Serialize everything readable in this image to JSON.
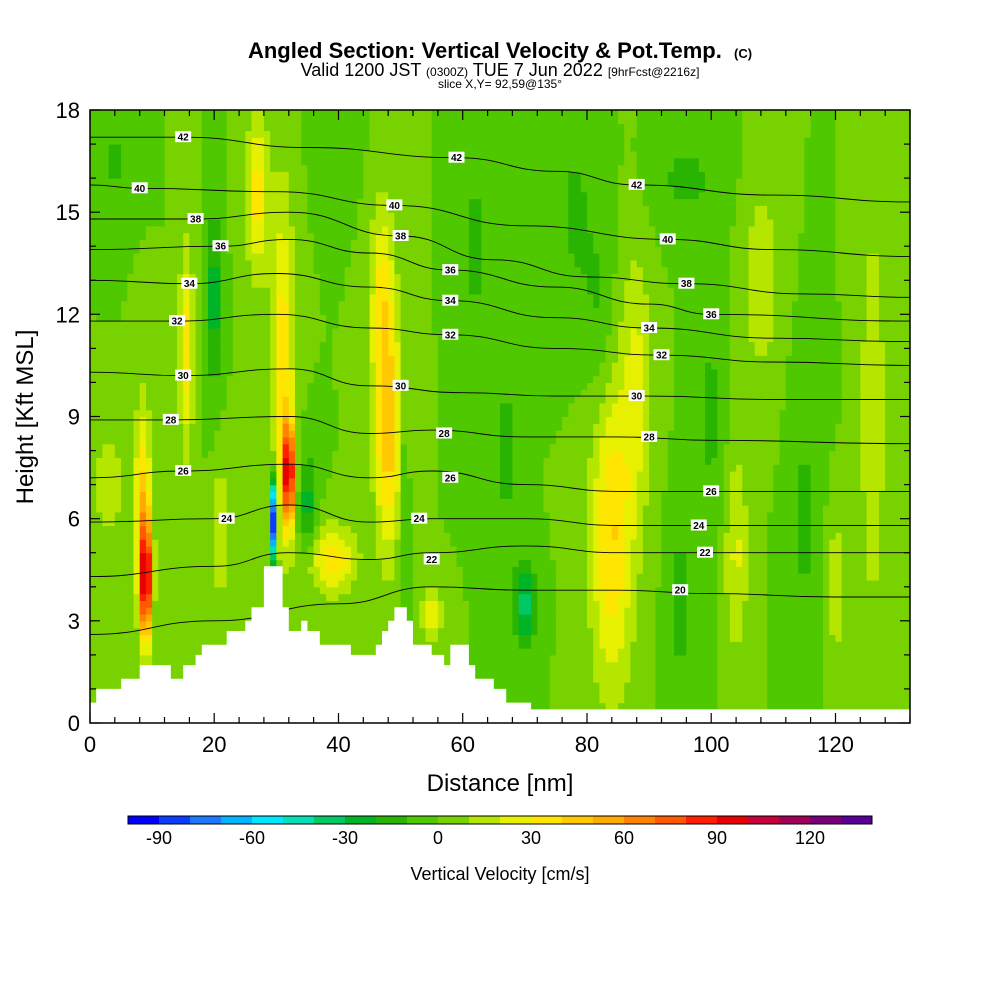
{
  "chart_data": {
    "type": "heatmap",
    "title": "Angled Section: Vertical Velocity & Pot.Temp.",
    "title_units": "(C)",
    "subtitle_prefix": "Valid 1200 JST",
    "subtitle_utc": "(0300Z)",
    "subtitle_date": "TUE 7 Jun 2022",
    "subtitle_fcst": "[9hrFcst@2216z]",
    "slice_label": "slice X,Y= 92,59@135°",
    "xlabel": "Distance [nm]",
    "ylabel": "Height [Kft MSL]",
    "xlim": [
      0,
      132
    ],
    "ylim": [
      0,
      18
    ],
    "x_ticks": [
      0,
      20,
      40,
      60,
      80,
      100,
      120
    ],
    "y_ticks": [
      0,
      3,
      6,
      9,
      12,
      15,
      18
    ],
    "colorbar": {
      "label": "Vertical Velocity [cm/s]",
      "min": -100,
      "max": 140,
      "step": 10,
      "tick_values": [
        -90,
        -60,
        -30,
        0,
        30,
        60,
        90,
        120
      ],
      "colors": [
        "#0000ff",
        "#0a3cff",
        "#1e78ff",
        "#00b4ff",
        "#00e6ff",
        "#00e0b4",
        "#00c864",
        "#00b428",
        "#28b400",
        "#50c800",
        "#78d200",
        "#b4e600",
        "#e6f000",
        "#ffe600",
        "#ffc800",
        "#ffaa00",
        "#ff8200",
        "#ff5a00",
        "#ff1e00",
        "#e60000",
        "#c8003c",
        "#a0005a",
        "#780078",
        "#5a0096"
      ]
    },
    "theta_isolines": [
      {
        "value": 20,
        "label": "20",
        "points": [
          [
            0,
            2.6
          ],
          [
            20,
            3.0
          ],
          [
            40,
            3.5
          ],
          [
            55,
            4.0
          ],
          [
            70,
            3.9
          ],
          [
            85,
            3.9
          ],
          [
            100,
            3.8
          ],
          [
            120,
            3.7
          ],
          [
            132,
            3.7
          ]
        ],
        "labels_at": [
          [
            95,
            3.9
          ]
        ]
      },
      {
        "value": 22,
        "label": "22",
        "points": [
          [
            0,
            4.3
          ],
          [
            20,
            4.6
          ],
          [
            32,
            5.0
          ],
          [
            45,
            4.8
          ],
          [
            55,
            5.0
          ],
          [
            70,
            5.2
          ],
          [
            85,
            5.0
          ],
          [
            100,
            5.0
          ],
          [
            132,
            5.0
          ]
        ],
        "labels_at": [
          [
            55,
            4.8
          ],
          [
            99,
            5.0
          ]
        ]
      },
      {
        "value": 24,
        "label": "24",
        "points": [
          [
            0,
            5.9
          ],
          [
            20,
            6.0
          ],
          [
            32,
            6.4
          ],
          [
            45,
            5.9
          ],
          [
            55,
            6.0
          ],
          [
            70,
            6.0
          ],
          [
            85,
            5.8
          ],
          [
            100,
            5.8
          ],
          [
            132,
            5.8
          ]
        ],
        "labels_at": [
          [
            22,
            6.0
          ],
          [
            53,
            6.0
          ],
          [
            98,
            5.8
          ]
        ]
      },
      {
        "value": 26,
        "label": "26",
        "points": [
          [
            0,
            7.2
          ],
          [
            15,
            7.4
          ],
          [
            32,
            7.6
          ],
          [
            45,
            7.2
          ],
          [
            55,
            7.4
          ],
          [
            70,
            7.0
          ],
          [
            85,
            6.8
          ],
          [
            100,
            6.8
          ],
          [
            132,
            6.8
          ]
        ],
        "labels_at": [
          [
            15,
            7.4
          ],
          [
            58,
            7.2
          ],
          [
            100,
            6.8
          ]
        ]
      },
      {
        "value": 28,
        "label": "28",
        "points": [
          [
            0,
            8.9
          ],
          [
            13,
            8.9
          ],
          [
            32,
            9.0
          ],
          [
            45,
            8.5
          ],
          [
            55,
            8.6
          ],
          [
            70,
            8.4
          ],
          [
            85,
            8.4
          ],
          [
            100,
            8.3
          ],
          [
            132,
            8.2
          ]
        ],
        "labels_at": [
          [
            13,
            8.9
          ],
          [
            57,
            8.5
          ],
          [
            90,
            8.4
          ]
        ]
      },
      {
        "value": 30,
        "label": "30",
        "points": [
          [
            0,
            10.3
          ],
          [
            15,
            10.2
          ],
          [
            32,
            10.4
          ],
          [
            45,
            9.9
          ],
          [
            60,
            9.7
          ],
          [
            75,
            9.6
          ],
          [
            90,
            9.6
          ],
          [
            110,
            9.5
          ],
          [
            132,
            9.5
          ]
        ],
        "labels_at": [
          [
            15,
            10.2
          ],
          [
            50,
            9.9
          ],
          [
            88,
            9.6
          ]
        ]
      },
      {
        "value": 32,
        "label": "32",
        "points": [
          [
            0,
            11.8
          ],
          [
            14,
            11.8
          ],
          [
            30,
            12.0
          ],
          [
            45,
            11.6
          ],
          [
            58,
            11.4
          ],
          [
            75,
            11.0
          ],
          [
            92,
            10.8
          ],
          [
            110,
            10.6
          ],
          [
            132,
            10.5
          ]
        ],
        "labels_at": [
          [
            14,
            11.8
          ],
          [
            58,
            11.4
          ],
          [
            92,
            10.8
          ]
        ]
      },
      {
        "value": 34,
        "label": "34",
        "points": [
          [
            0,
            13.0
          ],
          [
            16,
            12.9
          ],
          [
            30,
            13.2
          ],
          [
            45,
            12.8
          ],
          [
            58,
            12.4
          ],
          [
            75,
            11.9
          ],
          [
            90,
            11.6
          ],
          [
            110,
            11.3
          ],
          [
            132,
            11.2
          ]
        ],
        "labels_at": [
          [
            16,
            12.9
          ],
          [
            58,
            12.4
          ],
          [
            90,
            11.6
          ]
        ]
      },
      {
        "value": 36,
        "label": "36",
        "points": [
          [
            0,
            13.9
          ],
          [
            21,
            14.0
          ],
          [
            32,
            14.2
          ],
          [
            45,
            13.8
          ],
          [
            58,
            13.3
          ],
          [
            75,
            12.8
          ],
          [
            90,
            12.3
          ],
          [
            100,
            12.0
          ],
          [
            132,
            11.8
          ]
        ],
        "labels_at": [
          [
            21,
            14.0
          ],
          [
            58,
            13.3
          ],
          [
            100,
            12.0
          ]
        ]
      },
      {
        "value": 38,
        "label": "38",
        "points": [
          [
            0,
            14.8
          ],
          [
            17,
            14.8
          ],
          [
            32,
            15.0
          ],
          [
            50,
            14.3
          ],
          [
            65,
            13.6
          ],
          [
            80,
            13.1
          ],
          [
            96,
            12.9
          ],
          [
            115,
            12.6
          ],
          [
            132,
            12.5
          ]
        ],
        "labels_at": [
          [
            17,
            14.8
          ],
          [
            50,
            14.3
          ],
          [
            96,
            12.9
          ]
        ]
      },
      {
        "value": 40,
        "label": "40",
        "points": [
          [
            0,
            15.8
          ],
          [
            8,
            15.7
          ],
          [
            30,
            15.6
          ],
          [
            49,
            15.2
          ],
          [
            70,
            14.6
          ],
          [
            93,
            14.2
          ],
          [
            110,
            13.9
          ],
          [
            132,
            13.7
          ]
        ],
        "labels_at": [
          [
            8,
            15.7
          ],
          [
            49,
            15.2
          ],
          [
            93,
            14.2
          ]
        ]
      },
      {
        "value": 42,
        "label": "42",
        "points": [
          [
            0,
            17.2
          ],
          [
            15,
            17.2
          ],
          [
            35,
            16.9
          ],
          [
            59,
            16.6
          ],
          [
            75,
            16.2
          ],
          [
            88,
            15.8
          ],
          [
            110,
            15.5
          ],
          [
            132,
            15.3
          ]
        ],
        "labels_at": [
          [
            15,
            17.2
          ],
          [
            59,
            16.6
          ],
          [
            88,
            15.8
          ]
        ]
      }
    ],
    "terrain_profile": [
      [
        0,
        0.6
      ],
      [
        1,
        0.6
      ],
      [
        1,
        1.0
      ],
      [
        5,
        1.0
      ],
      [
        5,
        1.3
      ],
      [
        8,
        1.3
      ],
      [
        8,
        1.7
      ],
      [
        13,
        1.7
      ],
      [
        13,
        1.3
      ],
      [
        15,
        1.3
      ],
      [
        15,
        1.7
      ],
      [
        17,
        1.7
      ],
      [
        17,
        2.0
      ],
      [
        18,
        2.0
      ],
      [
        18,
        2.3
      ],
      [
        22,
        2.3
      ],
      [
        22,
        2.7
      ],
      [
        25,
        2.7
      ],
      [
        25,
        3.0
      ],
      [
        26,
        3.0
      ],
      [
        26,
        3.4
      ],
      [
        28,
        3.4
      ],
      [
        28,
        4.6
      ],
      [
        31,
        4.6
      ],
      [
        31,
        3.4
      ],
      [
        32,
        3.4
      ],
      [
        32,
        2.7
      ],
      [
        34,
        2.7
      ],
      [
        34,
        3.0
      ],
      [
        35,
        3.0
      ],
      [
        35,
        2.7
      ],
      [
        37,
        2.7
      ],
      [
        37,
        2.3
      ],
      [
        42,
        2.3
      ],
      [
        42,
        2.0
      ],
      [
        46,
        2.0
      ],
      [
        46,
        2.3
      ],
      [
        47,
        2.3
      ],
      [
        47,
        2.7
      ],
      [
        48,
        2.7
      ],
      [
        48,
        3.0
      ],
      [
        49,
        3.0
      ],
      [
        49,
        3.4
      ],
      [
        51,
        3.4
      ],
      [
        51,
        3.0
      ],
      [
        52,
        3.0
      ],
      [
        52,
        2.3
      ],
      [
        55,
        2.3
      ],
      [
        55,
        2.0
      ],
      [
        57,
        2.0
      ],
      [
        57,
        1.7
      ],
      [
        58,
        1.7
      ],
      [
        58,
        2.3
      ],
      [
        61,
        2.3
      ],
      [
        61,
        1.7
      ],
      [
        62,
        1.7
      ],
      [
        62,
        1.3
      ],
      [
        65,
        1.3
      ],
      [
        65,
        1.0
      ],
      [
        67,
        1.0
      ],
      [
        67,
        0.6
      ],
      [
        71,
        0.6
      ],
      [
        71,
        0.4
      ],
      [
        132,
        0.4
      ]
    ]
  }
}
